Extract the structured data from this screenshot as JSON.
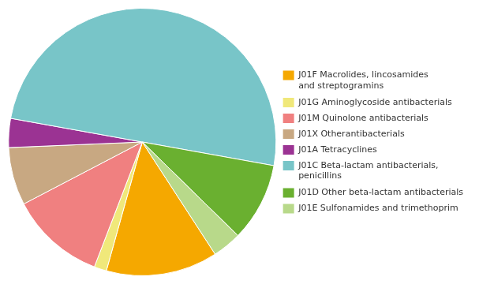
{
  "chart_data": {
    "type": "pie",
    "categories": [
      "J01F Macrolides, lincosamides\nand streptogramins",
      "J01G Aminoglycoside antibacterials",
      "J01M Quinolone antibacterials",
      "J01X Otherantibacterials",
      "J01A Tetracyclines",
      "J01C Beta-lactam antibacterials,\npenicillins",
      "J01D Other beta-lactam antibacterials",
      "J01E Sulfonamides and trimethoprim"
    ],
    "values": [
      13.5,
      1.5,
      11.5,
      7.0,
      3.5,
      50.0,
      9.5,
      3.5
    ],
    "colors": [
      "#F5A800",
      "#F0E87A",
      "#F08080",
      "#C8A882",
      "#9B3393",
      "#78C5C8",
      "#6AB030",
      "#B8D98A"
    ],
    "legend": "right"
  }
}
